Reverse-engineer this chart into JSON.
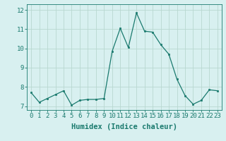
{
  "x": [
    0,
    1,
    2,
    3,
    4,
    5,
    6,
    7,
    8,
    9,
    10,
    11,
    12,
    13,
    14,
    15,
    16,
    17,
    18,
    19,
    20,
    21,
    22,
    23
  ],
  "y": [
    7.7,
    7.2,
    7.4,
    7.6,
    7.8,
    7.05,
    7.3,
    7.35,
    7.35,
    7.4,
    9.85,
    11.05,
    10.05,
    11.85,
    10.9,
    10.85,
    10.2,
    9.7,
    8.4,
    7.55,
    7.1,
    7.3,
    7.85,
    7.8
  ],
  "line_color": "#1a7a6e",
  "marker": "s",
  "marker_size": 2,
  "bg_color": "#d8f0f0",
  "grid_color": "#b8d8d0",
  "xlabel": "Humidex (Indice chaleur)",
  "ylim": [
    6.8,
    12.3
  ],
  "xlim": [
    -0.5,
    23.5
  ],
  "yticks": [
    7,
    8,
    9,
    10,
    11,
    12
  ],
  "xticks": [
    0,
    1,
    2,
    3,
    4,
    5,
    6,
    7,
    8,
    9,
    10,
    11,
    12,
    13,
    14,
    15,
    16,
    17,
    18,
    19,
    20,
    21,
    22,
    23
  ],
  "tick_color": "#1a7a6e",
  "xlabel_fontsize": 7.5,
  "tick_fontsize": 6.5
}
